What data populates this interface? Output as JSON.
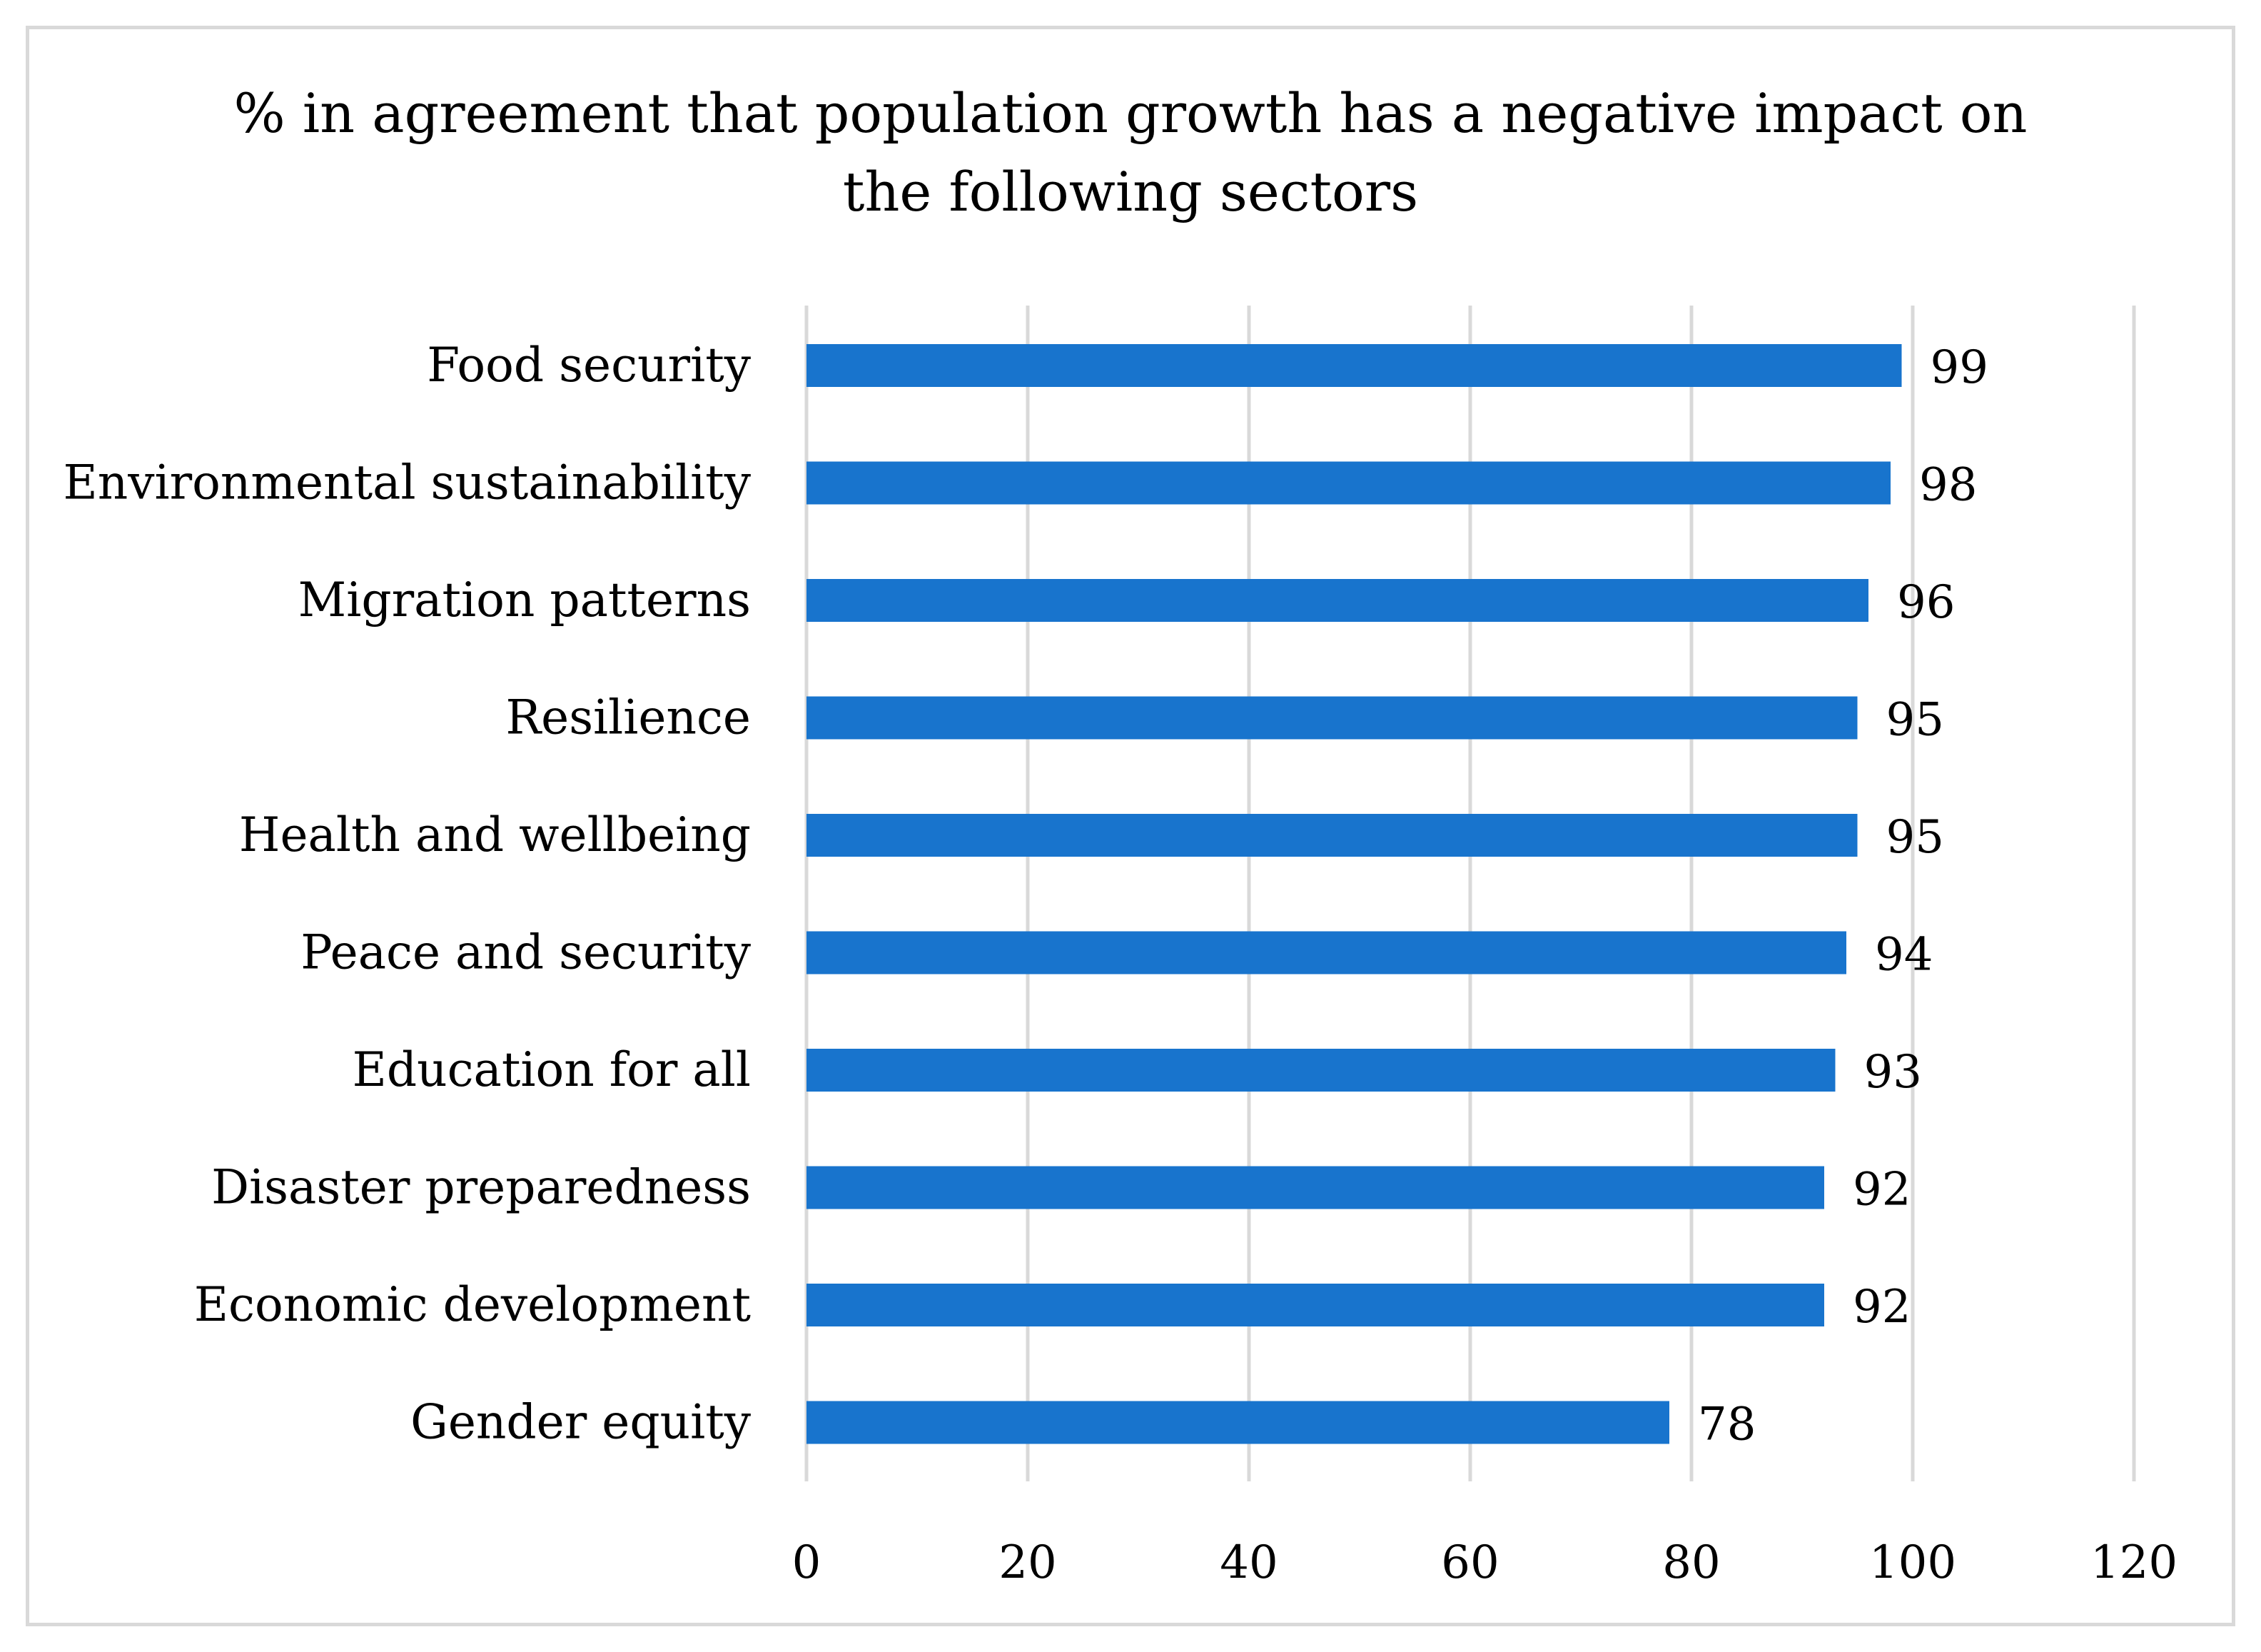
{
  "chart_data": {
    "type": "bar",
    "orientation": "horizontal",
    "title_lines": [
      "% in agreement that population growth has a negative impact on",
      "the following sectors"
    ],
    "categories": [
      "Food security",
      "Environmental sustainability",
      "Migration patterns",
      "Resilience",
      "Health and wellbeing",
      "Peace and security",
      "Education for all",
      "Disaster preparedness",
      "Economic development",
      "Gender equity"
    ],
    "values": [
      99,
      98,
      96,
      95,
      95,
      94,
      93,
      92,
      92,
      78
    ],
    "value_labels": [
      "99",
      "98",
      "96",
      "95",
      "95",
      "94",
      "93",
      "92",
      "92",
      "78"
    ],
    "xlim": [
      0,
      120
    ],
    "x_ticks": [
      0,
      20,
      40,
      60,
      80,
      100,
      120
    ],
    "x_tick_labels": [
      "0",
      "20",
      "40",
      "60",
      "80",
      "100",
      "120"
    ],
    "xlabel": "",
    "ylabel": "",
    "grid": true,
    "legend": "none",
    "bar_color": "#1874CD",
    "grid_color": "#d9d9d9"
  }
}
